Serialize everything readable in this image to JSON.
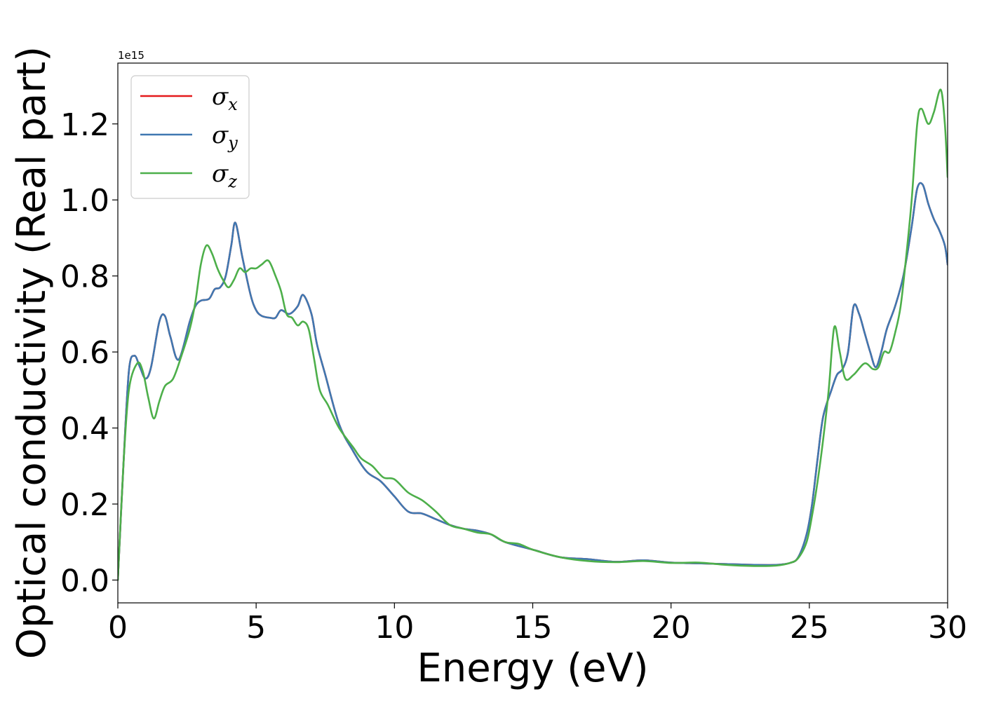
{
  "chart_data": {
    "type": "line",
    "xlabel": "Energy (eV)",
    "ylabel": "Optical conductivity (Real part)",
    "offset_text": "1e15",
    "xlim": [
      0,
      30
    ],
    "ylim": [
      -0.06,
      1.36
    ],
    "xticks": [
      0,
      5,
      10,
      15,
      20,
      25,
      30
    ],
    "xtick_labels": [
      "0",
      "5",
      "10",
      "15",
      "20",
      "25",
      "30"
    ],
    "yticks": [
      0.0,
      0.2,
      0.4,
      0.6,
      0.8,
      1.0,
      1.2
    ],
    "ytick_labels": [
      "0.0",
      "0.2",
      "0.4",
      "0.6",
      "0.8",
      "1.0",
      "1.2"
    ],
    "grid": false,
    "legend_position": "top-left",
    "series": [
      {
        "name": "σx",
        "label_base": "σ",
        "label_sub": "x",
        "color": "#e41a1c",
        "x": [
          0,
          0.2,
          0.4,
          0.6,
          0.8,
          1.0,
          1.2,
          1.5,
          1.7,
          1.9,
          2.2,
          2.6,
          2.8,
          3.0,
          3.3,
          3.5,
          3.7,
          3.9,
          4.1,
          4.25,
          4.5,
          4.8,
          5.0,
          5.2,
          5.5,
          5.7,
          5.9,
          6.2,
          6.5,
          6.7,
          7.0,
          7.2,
          7.5,
          8.0,
          8.5,
          9.0,
          9.5,
          10.0,
          10.5,
          11.0,
          11.5,
          12.0,
          12.5,
          13.0,
          13.5,
          14.0,
          15.0,
          16.0,
          17.0,
          18.0,
          19.0,
          20.0,
          21.0,
          22.0,
          23.0,
          23.8,
          24.3,
          24.6,
          24.9,
          25.1,
          25.3,
          25.5,
          25.8,
          26.0,
          26.2,
          26.4,
          26.6,
          26.8,
          27.0,
          27.2,
          27.4,
          27.6,
          27.8,
          28.1,
          28.4,
          28.7,
          28.9,
          29.1,
          29.3,
          29.5,
          29.7,
          29.9,
          30.0
        ],
        "y": [
          0.0,
          0.3,
          0.55,
          0.59,
          0.56,
          0.53,
          0.56,
          0.68,
          0.695,
          0.64,
          0.58,
          0.68,
          0.72,
          0.735,
          0.74,
          0.765,
          0.77,
          0.8,
          0.88,
          0.94,
          0.85,
          0.75,
          0.71,
          0.695,
          0.69,
          0.69,
          0.71,
          0.7,
          0.72,
          0.75,
          0.7,
          0.62,
          0.54,
          0.41,
          0.34,
          0.285,
          0.26,
          0.22,
          0.18,
          0.175,
          0.16,
          0.145,
          0.135,
          0.13,
          0.12,
          0.1,
          0.08,
          0.06,
          0.055,
          0.048,
          0.052,
          0.046,
          0.044,
          0.042,
          0.04,
          0.04,
          0.045,
          0.06,
          0.12,
          0.2,
          0.32,
          0.43,
          0.5,
          0.54,
          0.555,
          0.6,
          0.72,
          0.7,
          0.65,
          0.6,
          0.56,
          0.6,
          0.66,
          0.72,
          0.8,
          0.93,
          1.03,
          1.04,
          0.99,
          0.95,
          0.92,
          0.88,
          0.83
        ]
      },
      {
        "name": "σy",
        "label_base": "σ",
        "label_sub": "y",
        "color": "#3f78b1",
        "x": [
          0,
          0.2,
          0.4,
          0.6,
          0.8,
          1.0,
          1.2,
          1.5,
          1.7,
          1.9,
          2.2,
          2.6,
          2.8,
          3.0,
          3.3,
          3.5,
          3.7,
          3.9,
          4.1,
          4.25,
          4.5,
          4.8,
          5.0,
          5.2,
          5.5,
          5.7,
          5.9,
          6.2,
          6.5,
          6.7,
          7.0,
          7.2,
          7.5,
          8.0,
          8.5,
          9.0,
          9.5,
          10.0,
          10.5,
          11.0,
          11.5,
          12.0,
          12.5,
          13.0,
          13.5,
          14.0,
          15.0,
          16.0,
          17.0,
          18.0,
          19.0,
          20.0,
          21.0,
          22.0,
          23.0,
          23.8,
          24.3,
          24.6,
          24.9,
          25.1,
          25.3,
          25.5,
          25.8,
          26.0,
          26.2,
          26.4,
          26.6,
          26.8,
          27.0,
          27.2,
          27.4,
          27.6,
          27.8,
          28.1,
          28.4,
          28.7,
          28.9,
          29.1,
          29.3,
          29.5,
          29.7,
          29.9,
          30.0
        ],
        "y": [
          0.0,
          0.3,
          0.55,
          0.59,
          0.56,
          0.53,
          0.56,
          0.68,
          0.695,
          0.64,
          0.58,
          0.68,
          0.72,
          0.735,
          0.74,
          0.765,
          0.77,
          0.8,
          0.88,
          0.94,
          0.85,
          0.75,
          0.71,
          0.695,
          0.69,
          0.69,
          0.71,
          0.7,
          0.72,
          0.75,
          0.7,
          0.62,
          0.54,
          0.41,
          0.34,
          0.285,
          0.26,
          0.22,
          0.18,
          0.175,
          0.16,
          0.145,
          0.135,
          0.13,
          0.12,
          0.1,
          0.08,
          0.06,
          0.055,
          0.048,
          0.052,
          0.046,
          0.044,
          0.042,
          0.04,
          0.04,
          0.045,
          0.06,
          0.12,
          0.2,
          0.32,
          0.43,
          0.5,
          0.54,
          0.555,
          0.6,
          0.72,
          0.7,
          0.65,
          0.6,
          0.56,
          0.6,
          0.66,
          0.72,
          0.8,
          0.93,
          1.03,
          1.04,
          0.99,
          0.95,
          0.92,
          0.88,
          0.83
        ]
      },
      {
        "name": "σz",
        "label_base": "σ",
        "label_sub": "z",
        "color": "#4daf4a",
        "x": [
          0,
          0.2,
          0.4,
          0.7,
          0.9,
          1.1,
          1.3,
          1.5,
          1.7,
          2.0,
          2.3,
          2.6,
          2.8,
          3.0,
          3.2,
          3.4,
          3.6,
          3.8,
          4.0,
          4.2,
          4.4,
          4.6,
          4.8,
          5.0,
          5.2,
          5.45,
          5.7,
          5.9,
          6.1,
          6.3,
          6.5,
          6.7,
          6.9,
          7.1,
          7.3,
          7.6,
          8.0,
          8.5,
          8.8,
          9.2,
          9.6,
          10.0,
          10.5,
          11.0,
          11.5,
          12.0,
          12.5,
          13.0,
          13.5,
          14.0,
          14.5,
          15.0,
          16.0,
          17.0,
          18.0,
          19.0,
          20.0,
          21.0,
          22.0,
          23.0,
          23.8,
          24.3,
          24.6,
          24.9,
          25.1,
          25.3,
          25.5,
          25.7,
          25.9,
          26.1,
          26.3,
          26.6,
          27.0,
          27.3,
          27.5,
          27.7,
          27.9,
          28.1,
          28.3,
          28.5,
          28.7,
          28.9,
          29.05,
          29.3,
          29.5,
          29.75,
          29.9,
          30.0
        ],
        "y": [
          0.0,
          0.3,
          0.5,
          0.57,
          0.55,
          0.48,
          0.425,
          0.47,
          0.51,
          0.53,
          0.59,
          0.66,
          0.73,
          0.83,
          0.88,
          0.86,
          0.82,
          0.79,
          0.77,
          0.79,
          0.82,
          0.81,
          0.82,
          0.82,
          0.83,
          0.84,
          0.8,
          0.76,
          0.7,
          0.69,
          0.67,
          0.68,
          0.66,
          0.58,
          0.5,
          0.46,
          0.4,
          0.35,
          0.32,
          0.3,
          0.27,
          0.265,
          0.23,
          0.21,
          0.18,
          0.145,
          0.135,
          0.125,
          0.12,
          0.1,
          0.095,
          0.08,
          0.06,
          0.05,
          0.047,
          0.05,
          0.045,
          0.046,
          0.04,
          0.037,
          0.038,
          0.045,
          0.058,
          0.1,
          0.17,
          0.26,
          0.37,
          0.5,
          0.665,
          0.6,
          0.53,
          0.54,
          0.57,
          0.555,
          0.56,
          0.6,
          0.6,
          0.65,
          0.72,
          0.85,
          1.0,
          1.2,
          1.24,
          1.2,
          1.23,
          1.29,
          1.2,
          1.06
        ]
      }
    ]
  }
}
